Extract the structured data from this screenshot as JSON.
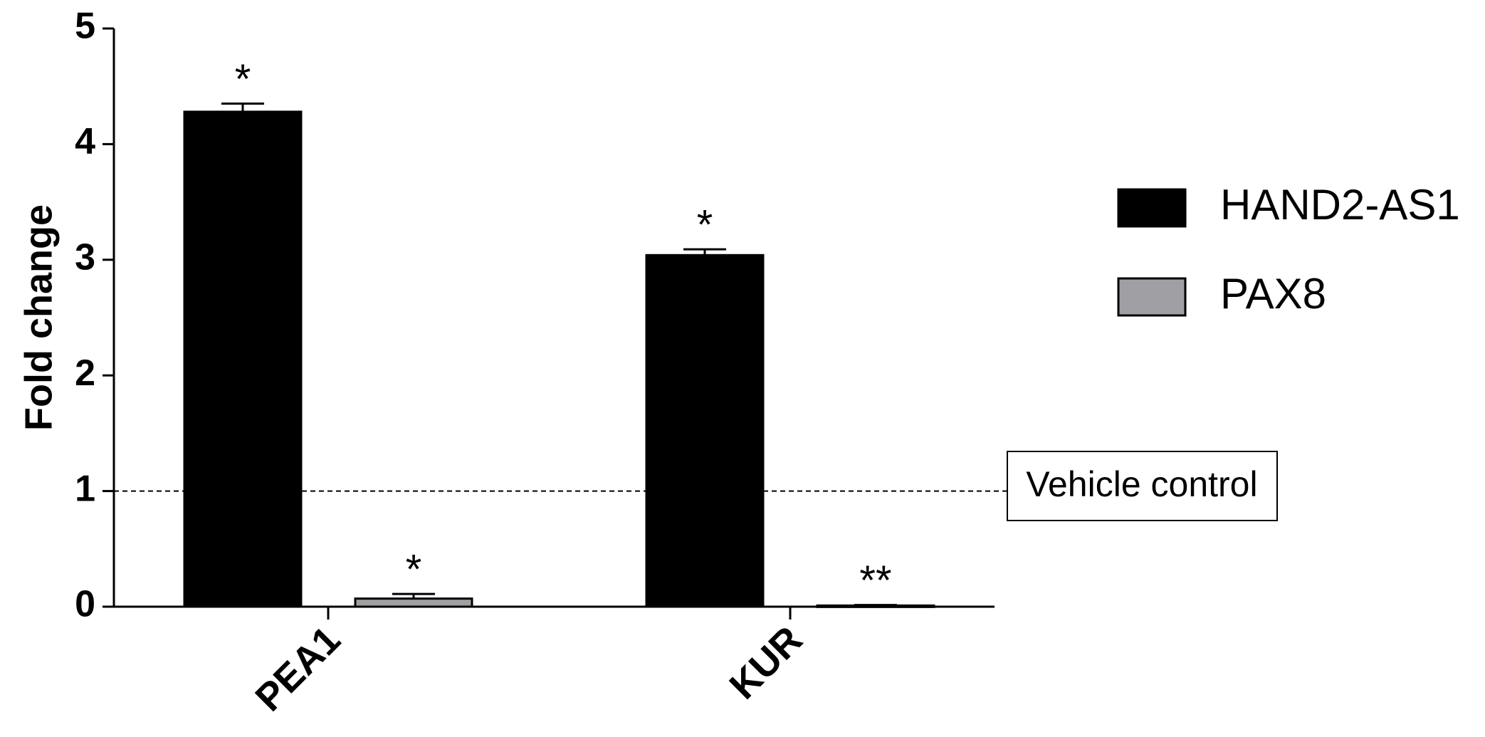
{
  "chart_data": {
    "type": "bar",
    "y_label": "Fold change",
    "categories": [
      "PEA1",
      "KUR"
    ],
    "series": [
      {
        "name": "HAND2-AS1",
        "color": "#000000",
        "values": [
          4.28,
          3.04
        ],
        "errors": [
          0.07,
          0.05
        ],
        "significance": [
          "*",
          "*"
        ]
      },
      {
        "name": "PAX8",
        "color": "#a0a0a4",
        "values": [
          0.07,
          0.01
        ],
        "errors": [
          0.04,
          0.005
        ],
        "significance": [
          "*",
          "**"
        ]
      }
    ],
    "ylim": [
      0,
      5
    ],
    "yticks": [
      0,
      1,
      2,
      3,
      4,
      5
    ],
    "reference_line": {
      "value": 1,
      "label": "Vehicle control"
    },
    "legend": "right"
  }
}
